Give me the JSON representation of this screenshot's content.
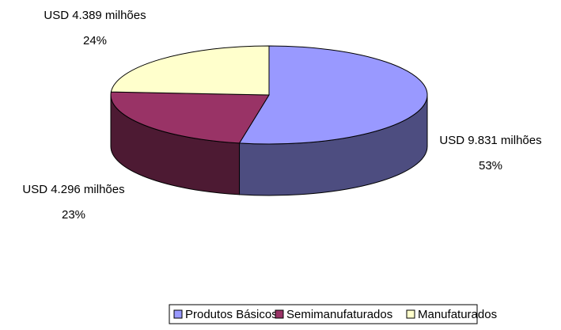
{
  "chart_data": {
    "type": "pie3d",
    "categories": [
      "Produtos Básicos",
      "Semimanufaturados",
      "Manufaturados"
    ],
    "values": [
      53,
      23,
      24
    ],
    "value_labels": [
      "53%",
      "23%",
      "24%"
    ],
    "amounts": [
      9831,
      4296,
      4389
    ],
    "amount_labels": [
      "USD 9.831 milhões",
      "USD 4.296 milhões",
      "USD 4.389 milhões"
    ],
    "colors": [
      "#9999ff",
      "#993366",
      "#ffffcc"
    ],
    "legend": "bottom"
  }
}
